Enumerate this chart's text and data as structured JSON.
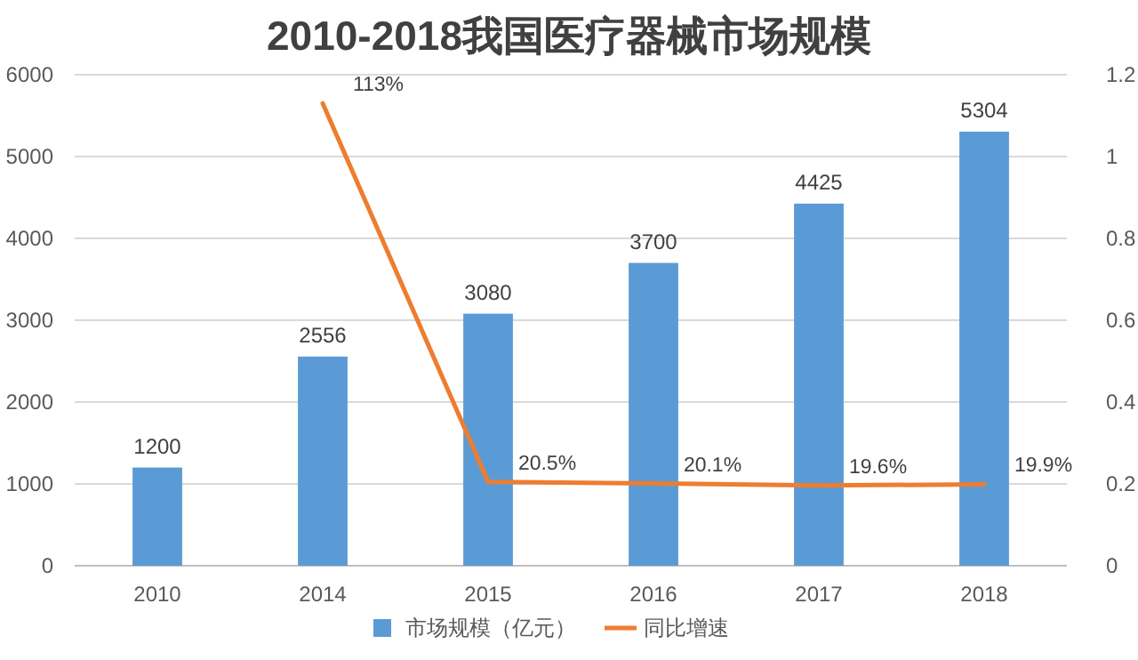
{
  "chart_data": {
    "type": "bar",
    "title": "2010-2018我国医疗器械市场规模",
    "categories": [
      "2010",
      "2014",
      "2015",
      "2016",
      "2017",
      "2018"
    ],
    "series": [
      {
        "name": "市场规模（亿元）",
        "color": "#5b9bd5",
        "values": [
          1200,
          2556,
          3080,
          3700,
          4425,
          5304
        ],
        "value_labels": [
          "1200",
          "2556",
          "3080",
          "3700",
          "4425",
          "5304"
        ]
      },
      {
        "name": "同比增速",
        "type": "line",
        "axis": "y2",
        "color": "#ed7d31",
        "values": [
          null,
          1.13,
          0.205,
          0.201,
          0.196,
          0.199
        ],
        "value_labels": [
          null,
          "113%",
          "20.5%",
          "20.1%",
          "19.6%",
          "19.9%"
        ]
      }
    ],
    "ylim": [
      0,
      6000
    ],
    "yticks": [
      0,
      1000,
      2000,
      3000,
      4000,
      5000,
      6000
    ],
    "y2lim": [
      0,
      1.2
    ],
    "y2ticks": [
      0,
      0.2,
      0.4,
      0.6,
      0.8,
      1,
      1.2
    ],
    "grid": "y",
    "legend": "bottom",
    "marker": "none",
    "line_style": "solid"
  }
}
